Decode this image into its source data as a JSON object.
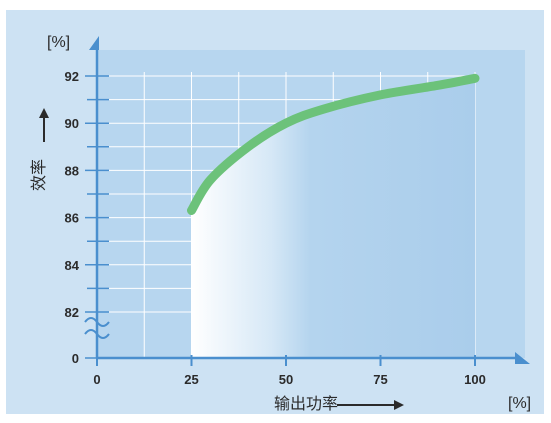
{
  "chart_data": {
    "type": "line",
    "x": [
      25,
      30,
      40,
      50,
      60,
      75,
      90,
      100
    ],
    "values": [
      86.3,
      87.6,
      89.0,
      90.0,
      90.6,
      91.2,
      91.6,
      91.9
    ],
    "xlabel": "输出功率",
    "ylabel": "效率",
    "x_unit": "[%]",
    "y_unit": "[%]",
    "xlim": [
      0,
      100
    ],
    "ylim_broken": [
      0,
      82,
      92
    ],
    "x_ticks": [
      "0",
      "25",
      "50",
      "75",
      "100"
    ],
    "y_ticks": [
      "0",
      "82",
      "84",
      "86",
      "88",
      "90",
      "92"
    ],
    "grid": true,
    "colors": {
      "background": "#cde2f3",
      "plot": "#b7d6ef",
      "grid": "#ffffff",
      "axis": "#4a8fce",
      "curve": "#6cc27a"
    }
  }
}
